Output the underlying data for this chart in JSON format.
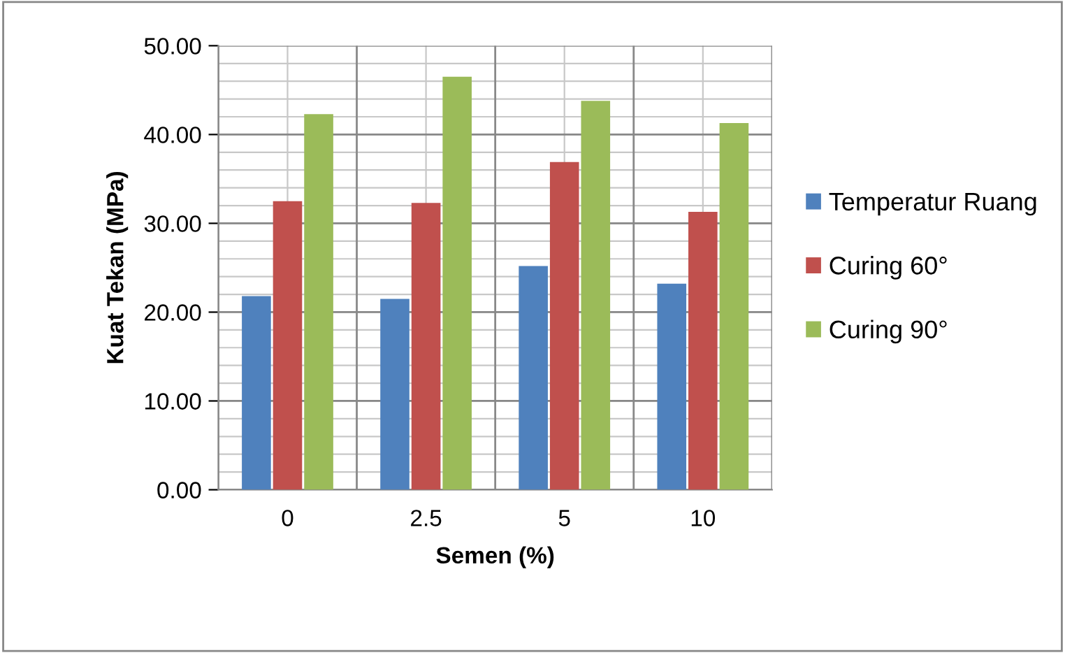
{
  "chart_data": {
    "type": "bar",
    "xlabel": "Semen (%)",
    "ylabel": "Kuat Tekan (MPa)",
    "categories": [
      "0",
      "2.5",
      "5",
      "10"
    ],
    "series": [
      {
        "name": "Temperatur Ruang",
        "color": "#4f81bd",
        "values": [
          21.8,
          21.5,
          25.2,
          23.2
        ]
      },
      {
        "name": "Curing 60°",
        "color": "#c0504d",
        "values": [
          32.5,
          32.3,
          36.9,
          31.3
        ]
      },
      {
        "name": "Curing 90°",
        "color": "#9bbb59",
        "values": [
          42.3,
          46.5,
          43.8,
          41.3
        ]
      }
    ],
    "ylim": [
      0,
      50
    ],
    "yticks": [
      {
        "value": 0,
        "label": "0.00"
      },
      {
        "value": 10,
        "label": "10.00"
      },
      {
        "value": 20,
        "label": "20.00"
      },
      {
        "value": 30,
        "label": "30.00"
      },
      {
        "value": 40,
        "label": "40.00"
      },
      {
        "value": 50,
        "label": "50.00"
      }
    ],
    "grid": true,
    "legend": "right"
  }
}
